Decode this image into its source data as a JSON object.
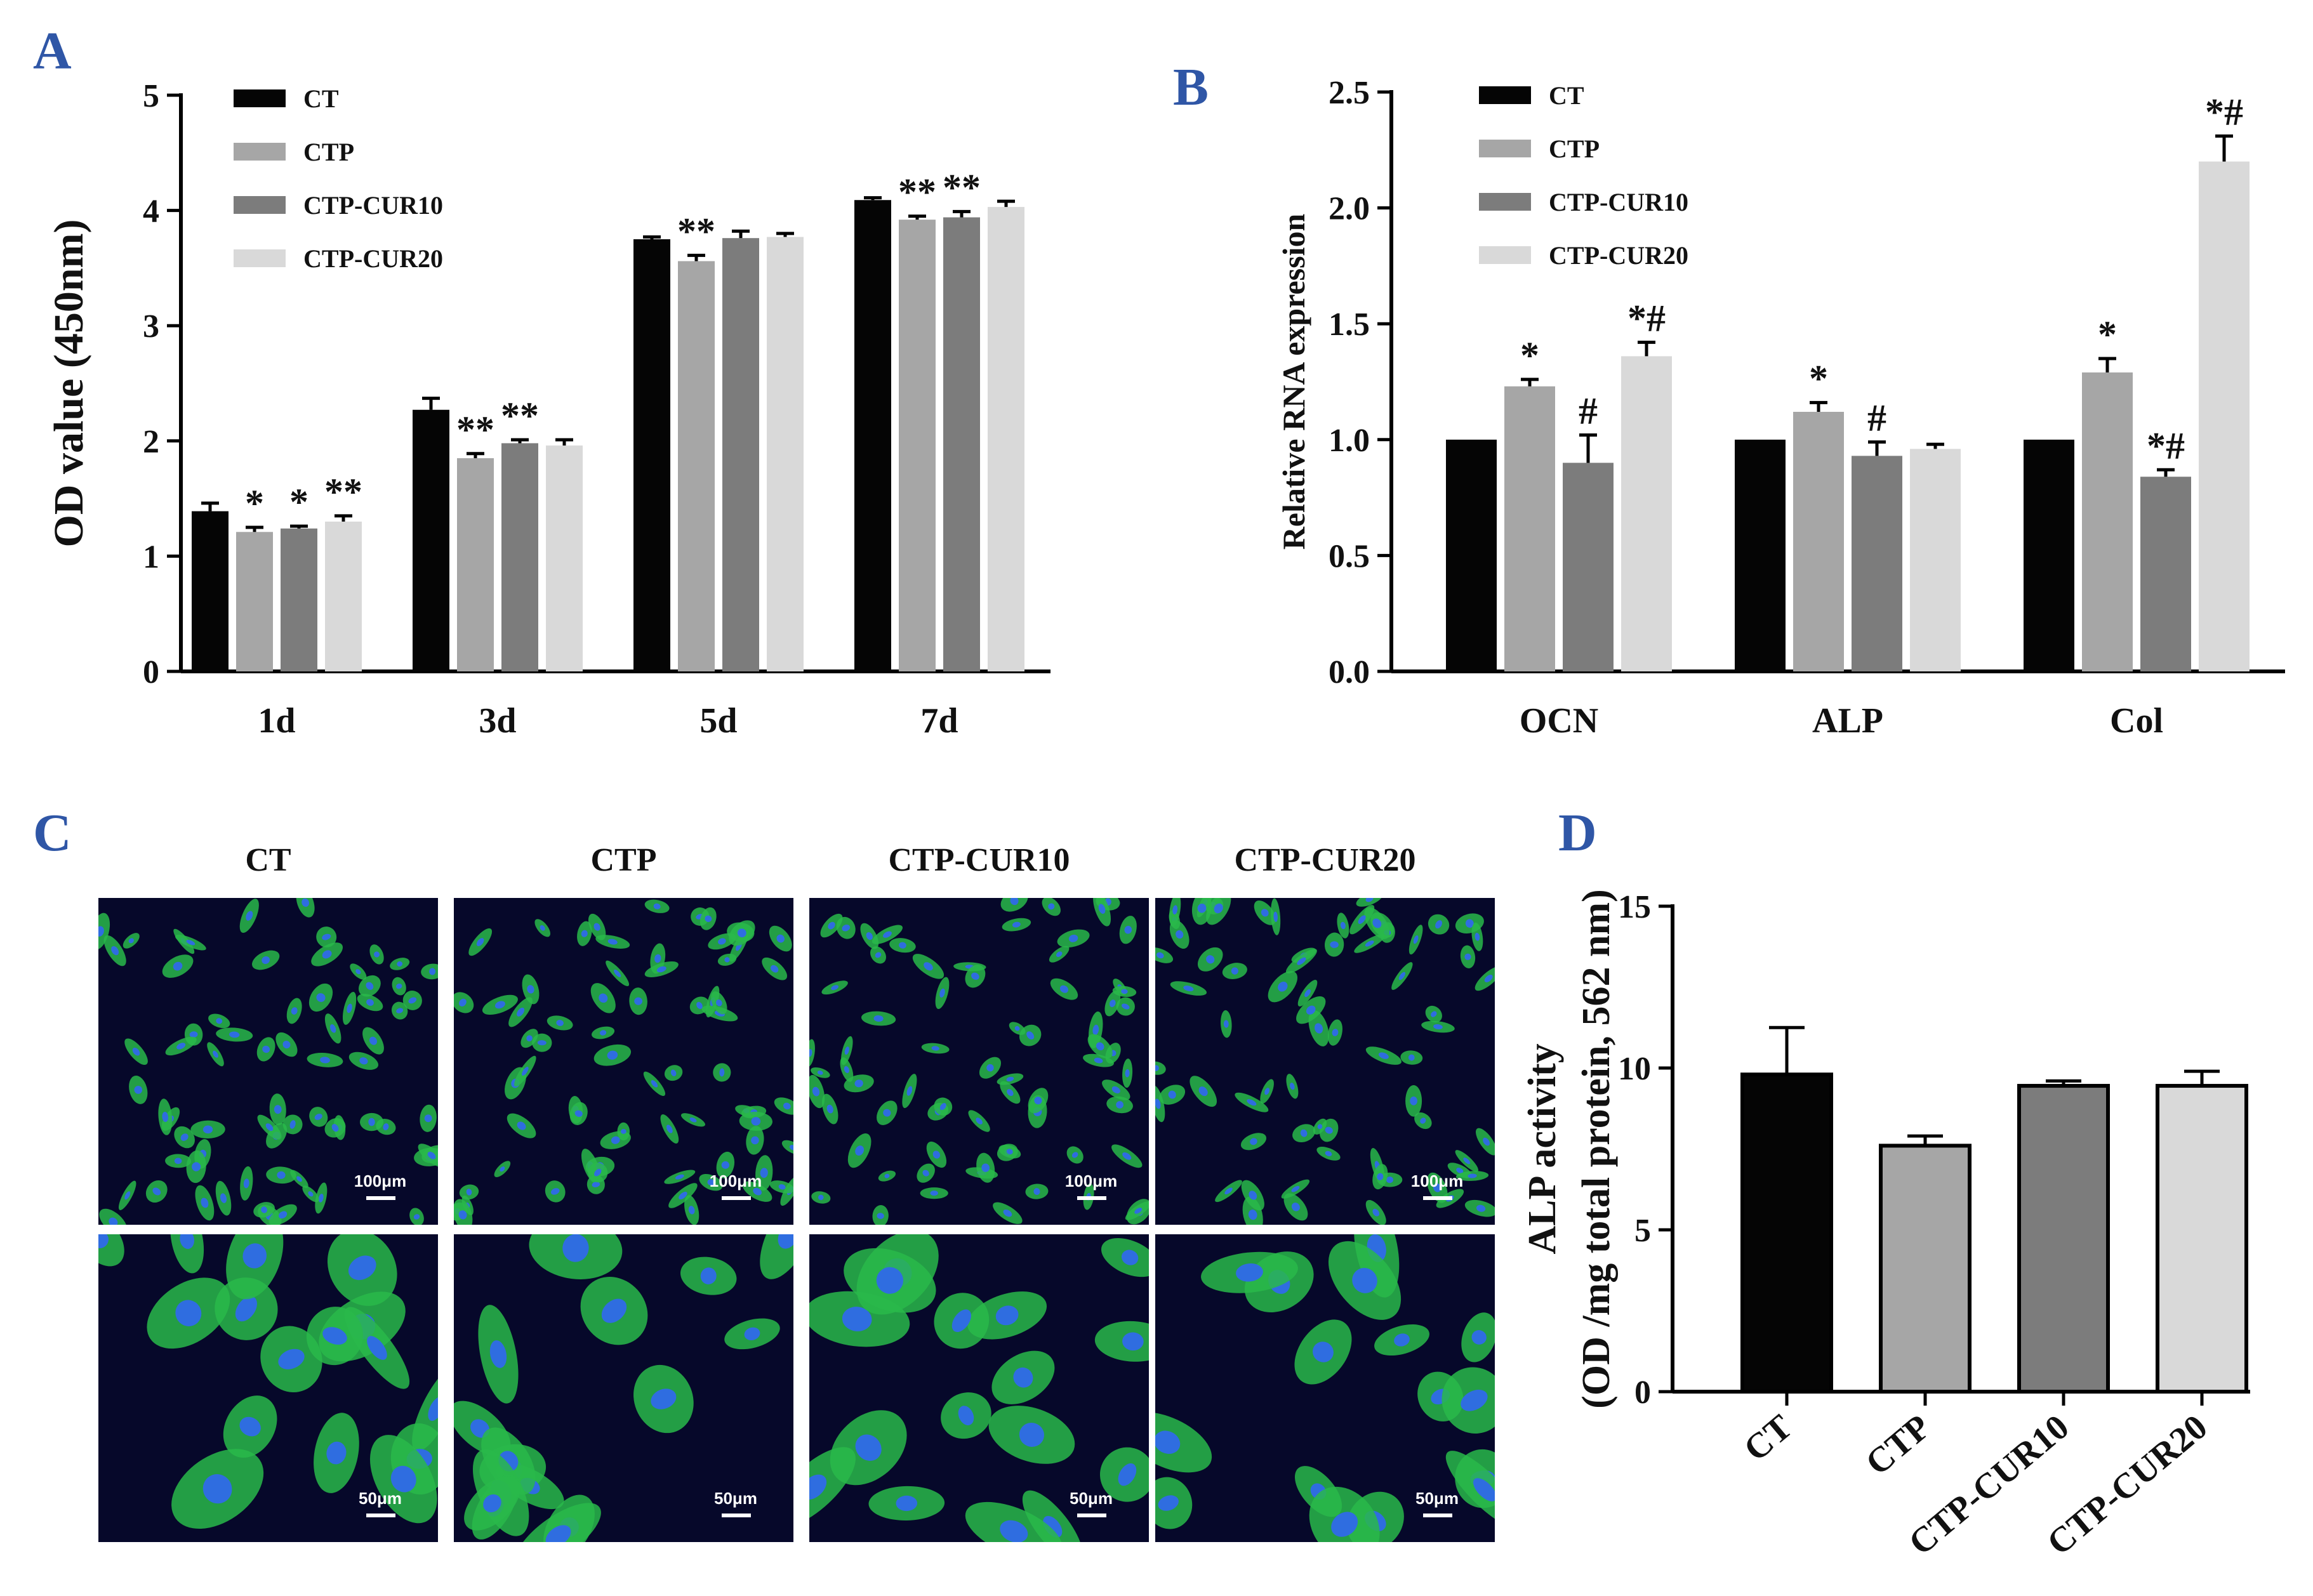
{
  "chart_data": [
    {
      "panel": "A",
      "type": "bar",
      "ylabel": "OD value (450nm)",
      "ylim": [
        0,
        5
      ],
      "yticks": [
        0,
        1,
        2,
        3,
        4,
        5
      ],
      "categories": [
        "1d",
        "3d",
        "5d",
        "7d"
      ],
      "legend": [
        "CT",
        "CTP",
        "CTP-CUR10",
        "CTP-CUR20"
      ],
      "colors": [
        "#050505",
        "#a6a6a6",
        "#7c7c7c",
        "#d9d9d9"
      ],
      "series": [
        {
          "name": "CT",
          "values": [
            1.39,
            2.27,
            3.75,
            4.09
          ],
          "errors": [
            0.07,
            0.1,
            0.02,
            0.02
          ],
          "sig": [
            "",
            "",
            "",
            ""
          ]
        },
        {
          "name": "CTP",
          "values": [
            1.21,
            1.85,
            3.56,
            3.92
          ],
          "errors": [
            0.04,
            0.04,
            0.05,
            0.03
          ],
          "sig": [
            "*",
            "**",
            "**",
            "**"
          ]
        },
        {
          "name": "CTP-CUR10",
          "values": [
            1.24,
            1.98,
            3.76,
            3.94
          ],
          "errors": [
            0.02,
            0.03,
            0.06,
            0.05
          ],
          "sig": [
            "*",
            "**",
            "",
            "**"
          ]
        },
        {
          "name": "CTP-CUR20",
          "values": [
            1.3,
            1.96,
            3.77,
            4.03
          ],
          "errors": [
            0.05,
            0.05,
            0.03,
            0.05
          ],
          "sig": [
            "**",
            "",
            "",
            ""
          ]
        }
      ]
    },
    {
      "panel": "B",
      "type": "bar",
      "ylabel": "Relative RNA expression",
      "ylim": [
        0,
        2.5
      ],
      "yticks": [
        "0.0",
        "0.5",
        "1.0",
        "1.5",
        "2.0",
        "2.5"
      ],
      "categories": [
        "OCN",
        "ALP",
        "Col"
      ],
      "legend": [
        "CT",
        "CTP",
        "CTP-CUR10",
        "CTP-CUR20"
      ],
      "colors": [
        "#050505",
        "#a6a6a6",
        "#7c7c7c",
        "#d9d9d9"
      ],
      "series": [
        {
          "name": "CT",
          "values": [
            1.0,
            1.0,
            1.0
          ],
          "errors": [
            0,
            0,
            0
          ],
          "sig": [
            "",
            "",
            ""
          ]
        },
        {
          "name": "CTP",
          "values": [
            1.23,
            1.12,
            1.29
          ],
          "errors": [
            0.03,
            0.04,
            0.06
          ],
          "sig": [
            "*",
            "*",
            "*"
          ]
        },
        {
          "name": "CTP-CUR10",
          "values": [
            0.9,
            0.93,
            0.84
          ],
          "errors": [
            0.12,
            0.06,
            0.03
          ],
          "sig": [
            "#",
            "#",
            "*#"
          ]
        },
        {
          "name": "CTP-CUR20",
          "values": [
            1.36,
            0.96,
            2.2
          ],
          "errors": [
            0.06,
            0.02,
            0.11
          ],
          "sig": [
            "*#",
            "",
            "*#"
          ]
        }
      ]
    },
    {
      "panel": "D",
      "type": "bar",
      "ylabel_line1": "ALP activity",
      "ylabel_line2": "(OD /mg total protein, 562 nm)",
      "ylim": [
        0,
        15
      ],
      "yticks": [
        0,
        5,
        10,
        15
      ],
      "categories": [
        "CT",
        "CTP",
        "CTP-CUR10",
        "CTP-CUR20"
      ],
      "colors": [
        "#050505",
        "#a6a6a6",
        "#7c7c7c",
        "#d9d9d9"
      ],
      "values": [
        9.8,
        7.6,
        9.45,
        9.45
      ],
      "errors": [
        1.45,
        0.3,
        0.15,
        0.45
      ]
    }
  ],
  "panel_labels": {
    "a": "A",
    "b": "B",
    "c": "C",
    "d": "D"
  },
  "microscopy": {
    "columns": [
      "CT",
      "CTP",
      "CTP-CUR10",
      "CTP-CUR20"
    ],
    "scale_top": "100μm",
    "scale_bottom": "50μm",
    "colors": {
      "background": "#06082a",
      "cell": "#29b94a",
      "nucleus": "#2f6de0"
    }
  }
}
